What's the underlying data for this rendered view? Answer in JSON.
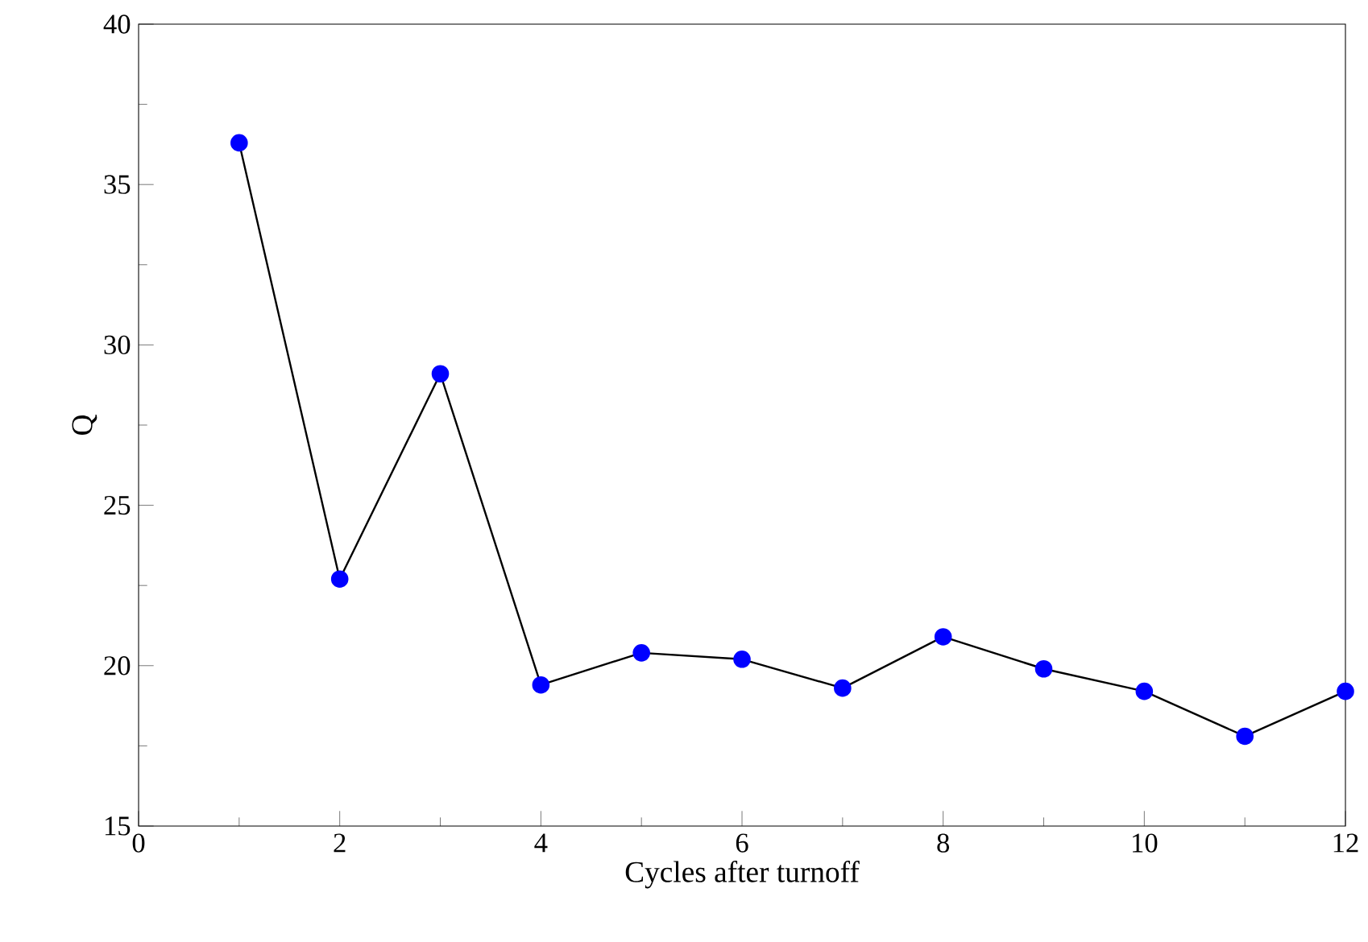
{
  "chart_data": {
    "type": "line",
    "xlabel": "Cycles after turnoff",
    "ylabel": "Q",
    "x": [
      1,
      2,
      3,
      4,
      5,
      6,
      7,
      8,
      9,
      10,
      11,
      12
    ],
    "series": [
      {
        "color": "#0000ff",
        "values": [
          36.3,
          22.7,
          29.1,
          19.4,
          20.4,
          20.2,
          19.3,
          20.9,
          19.9,
          19.2,
          17.8,
          19.2
        ]
      }
    ],
    "xlim": [
      0,
      12
    ],
    "ylim": [
      15,
      40
    ],
    "xticks": [
      0,
      2,
      4,
      6,
      8,
      10,
      12
    ],
    "yticks": [
      15,
      20,
      25,
      30,
      35,
      40
    ],
    "grid": false,
    "marker": "circle",
    "line_style": "solid"
  }
}
